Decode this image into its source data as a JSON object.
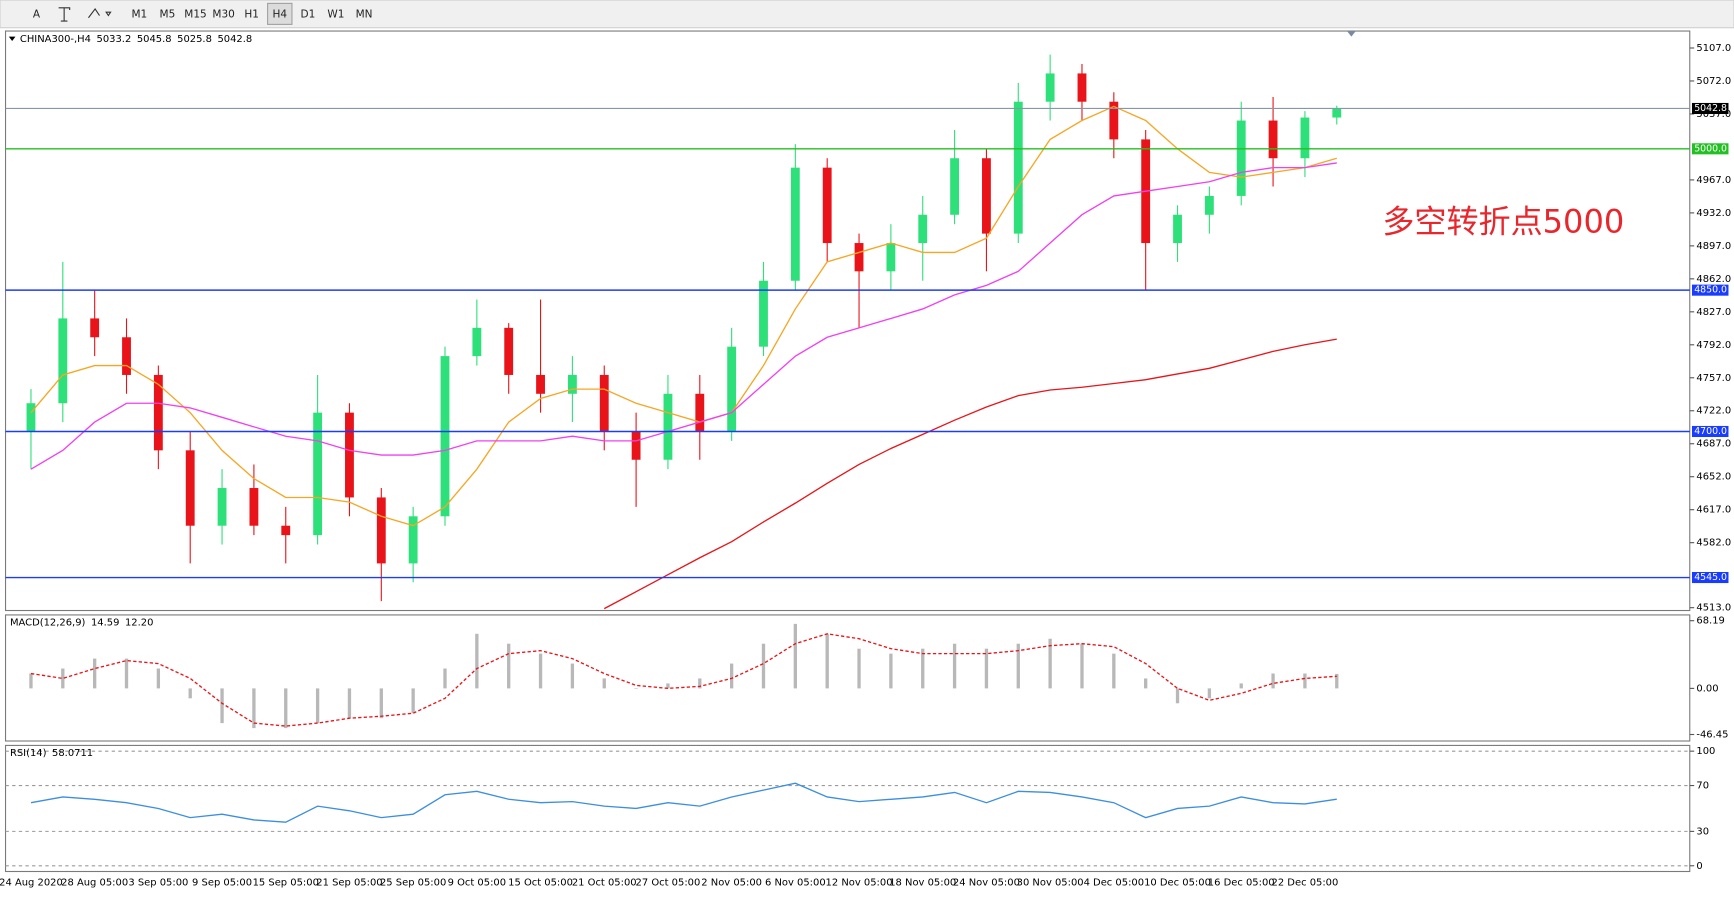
{
  "toolbar": {
    "buttons": [
      "A",
      "M1",
      "M5",
      "M15",
      "M30",
      "H1",
      "H4",
      "D1",
      "W1",
      "MN"
    ],
    "active": "H4"
  },
  "chart_data": [
    {
      "type": "candlestick",
      "title": "CHINA300-,H4",
      "categories": [
        "24 Aug 2020",
        null,
        "28 Aug 05:00",
        null,
        "3 Sep 05:00",
        null,
        "9 Sep 05:00",
        null,
        "15 Sep 05:00",
        null,
        "21 Sep 05:00",
        null,
        "25 Sep 05:00",
        null,
        "9 Oct 05:00",
        null,
        "15 Oct 05:00",
        null,
        "21 Oct 05:00",
        null,
        "27 Oct 05:00",
        null,
        "2 Nov 05:00",
        null,
        "6 Nov 05:00",
        null,
        "12 Nov 05:00",
        null,
        "18 Nov 05:00",
        null,
        "24 Nov 05:00",
        null,
        "30 Nov 05:00",
        null,
        "4 Dec 05:00",
        null,
        "10 Dec 05:00",
        null,
        "16 Dec 05:00",
        null,
        "22 Dec 05:00",
        null
      ],
      "ohlc": [
        [
          4700,
          4745,
          4660,
          4730
        ],
        [
          4730,
          4880,
          4710,
          4820
        ],
        [
          4820,
          4850,
          4780,
          4800
        ],
        [
          4800,
          4820,
          4740,
          4760
        ],
        [
          4760,
          4770,
          4660,
          4680
        ],
        [
          4680,
          4700,
          4560,
          4600
        ],
        [
          4600,
          4660,
          4580,
          4640
        ],
        [
          4640,
          4665,
          4590,
          4600
        ],
        [
          4600,
          4620,
          4560,
          4590
        ],
        [
          4590,
          4760,
          4580,
          4720
        ],
        [
          4720,
          4730,
          4610,
          4630
        ],
        [
          4630,
          4640,
          4520,
          4560
        ],
        [
          4560,
          4620,
          4540,
          4610
        ],
        [
          4610,
          4790,
          4600,
          4780
        ],
        [
          4780,
          4840,
          4770,
          4810
        ],
        [
          4810,
          4815,
          4740,
          4760
        ],
        [
          4760,
          4840,
          4720,
          4740
        ],
        [
          4740,
          4780,
          4710,
          4760
        ],
        [
          4760,
          4770,
          4680,
          4700
        ],
        [
          4700,
          4720,
          4620,
          4670
        ],
        [
          4670,
          4760,
          4660,
          4740
        ],
        [
          4740,
          4760,
          4670,
          4700
        ],
        [
          4700,
          4810,
          4690,
          4790
        ],
        [
          4790,
          4880,
          4780,
          4860
        ],
        [
          4860,
          5005,
          4850,
          4980
        ],
        [
          4980,
          4990,
          4880,
          4900
        ],
        [
          4900,
          4910,
          4810,
          4870
        ],
        [
          4870,
          4920,
          4850,
          4900
        ],
        [
          4900,
          4950,
          4860,
          4930
        ],
        [
          4930,
          5020,
          4920,
          4990
        ],
        [
          4990,
          5000,
          4870,
          4910
        ],
        [
          4910,
          5070,
          4900,
          5050
        ],
        [
          5050,
          5100,
          5030,
          5080
        ],
        [
          5080,
          5090,
          5030,
          5050
        ],
        [
          5050,
          5060,
          4990,
          5010
        ],
        [
          5010,
          5020,
          4850,
          4900
        ],
        [
          4900,
          4940,
          4880,
          4930
        ],
        [
          4930,
          4960,
          4910,
          4950
        ],
        [
          4950,
          5050,
          4940,
          5030
        ],
        [
          5030,
          5055,
          4960,
          4990
        ],
        [
          4990,
          5040,
          4970,
          5033.2
        ],
        [
          5033.2,
          5045.8,
          5025.8,
          5042.8
        ]
      ],
      "up_color": "#2ee07a",
      "down_color": "#e8141a",
      "moving_averages": [
        {
          "color": "#f5a623",
          "values": [
            4720,
            4760,
            4770,
            4770,
            4750,
            4720,
            4680,
            4650,
            4630,
            4630,
            4625,
            4610,
            4600,
            4620,
            4660,
            4710,
            4735,
            4745,
            4745,
            4730,
            4720,
            4710,
            4720,
            4770,
            4830,
            4880,
            4890,
            4900,
            4890,
            4890,
            4905,
            4960,
            5010,
            5030,
            5045,
            5030,
            5000,
            4975,
            4970,
            4975,
            4980,
            4990
          ]
        },
        {
          "color": "#f040f0",
          "values": [
            4660,
            4680,
            4710,
            4730,
            4730,
            4725,
            4715,
            4705,
            4695,
            4690,
            4680,
            4675,
            4675,
            4680,
            4690,
            4690,
            4690,
            4695,
            4690,
            4690,
            4700,
            4710,
            4720,
            4750,
            4780,
            4800,
            4810,
            4820,
            4830,
            4845,
            4855,
            4870,
            4900,
            4930,
            4950,
            4955,
            4960,
            4965,
            4975,
            4980,
            4980,
            4985
          ]
        },
        {
          "color": "#e8141a",
          "values": [
            null,
            null,
            null,
            null,
            null,
            null,
            null,
            null,
            null,
            null,
            null,
            null,
            null,
            null,
            null,
            null,
            null,
            null,
            4512,
            4530,
            4548,
            4566,
            4583,
            4604,
            4624,
            4645,
            4665,
            4682,
            4697,
            4712,
            4726,
            4738,
            4744,
            4747,
            4751,
            4755,
            4761,
            4767,
            4776,
            4785,
            4792,
            4798
          ]
        }
      ],
      "levels": [
        {
          "value": 5000,
          "label": "5000.0",
          "color": "#22c022"
        },
        {
          "value": 4850,
          "label": "4850.0",
          "color": "#1a3cff"
        },
        {
          "value": 4700,
          "label": "4700.0",
          "color": "#1a3cff"
        },
        {
          "value": 4545,
          "label": "4545.0",
          "color": "#1a3cff"
        }
      ],
      "bid_color": "#8796ad",
      "annotation": "多空转折点5000",
      "ylim": [
        4510,
        5125
      ],
      "yticks": [
        {
          "value": 5107,
          "label": "5107.0"
        },
        {
          "value": 5072,
          "label": "5072.0"
        },
        {
          "value": 5037,
          "label": "5037.0"
        },
        {
          "value": 4967,
          "label": "4967.0"
        },
        {
          "value": 4932,
          "label": "4932.0"
        },
        {
          "value": 4897,
          "label": "4897.0"
        },
        {
          "value": 4862,
          "label": "4862.0"
        },
        {
          "value": 4827,
          "label": "4827.0"
        },
        {
          "value": 4792,
          "label": "4792.0"
        },
        {
          "value": 4757,
          "label": "4757.0"
        },
        {
          "value": 4722,
          "label": "4722.0"
        },
        {
          "value": 4687,
          "label": "4687.0"
        },
        {
          "value": 4652,
          "label": "4652.0"
        },
        {
          "value": 4617,
          "label": "4617.0"
        },
        {
          "value": 4582,
          "label": "4582.0"
        },
        {
          "value": 4513,
          "label": "4513.0"
        }
      ]
    },
    {
      "type": "macd",
      "title": "MACD(12,26,9)",
      "series": [
        {
          "type": "bar",
          "color": "#b8b8b8",
          "values": [
            15,
            20,
            30,
            30,
            20,
            -10,
            -35,
            -40,
            -40,
            -35,
            -30,
            -30,
            -25,
            20,
            55,
            45,
            35,
            25,
            10,
            0,
            5,
            10,
            25,
            45,
            65,
            55,
            40,
            35,
            40,
            45,
            40,
            45,
            50,
            45,
            35,
            10,
            -15,
            -10,
            5,
            15,
            15,
            14.59
          ]
        },
        {
          "type": "line",
          "color": "#e8141a",
          "values": [
            15,
            10,
            20,
            28,
            25,
            10,
            -15,
            -35,
            -38,
            -35,
            -30,
            -28,
            -25,
            -10,
            20,
            35,
            38,
            30,
            15,
            3,
            0,
            2,
            10,
            25,
            45,
            55,
            50,
            40,
            35,
            35,
            35,
            38,
            43,
            45,
            42,
            25,
            0,
            -12,
            -5,
            5,
            10,
            12.2
          ],
          "value_labels": [
            null,
            null,
            null,
            null,
            null,
            null,
            null,
            null,
            null,
            null,
            null,
            null,
            null,
            null,
            null,
            null,
            null,
            null,
            null,
            null,
            null,
            null,
            null,
            null,
            null,
            null,
            null,
            null,
            null,
            null,
            null,
            null,
            null,
            null,
            null,
            null,
            null,
            null,
            null,
            null,
            null,
            "12.20"
          ]
        }
      ],
      "ylim": [
        -53,
        74
      ],
      "yticks": [
        68.19,
        {
          "value": 0,
          "label": "0.00"
        },
        -46.45
      ]
    },
    {
      "type": "line",
      "title": "RSI(14)",
      "color": "#3c8ee0",
      "values": [
        55,
        60,
        58,
        55,
        50,
        42,
        45,
        40,
        38,
        52,
        48,
        42,
        45,
        62,
        65,
        58,
        55,
        56,
        52,
        50,
        55,
        52,
        60,
        66,
        72,
        60,
        56,
        58,
        60,
        64,
        55,
        65,
        64,
        60,
        55,
        42,
        50,
        52,
        60,
        55,
        54,
        58.0711
      ],
      "ylim": [
        -5,
        105
      ],
      "yticks": [
        100,
        70,
        30,
        0
      ],
      "grid": true
    }
  ]
}
